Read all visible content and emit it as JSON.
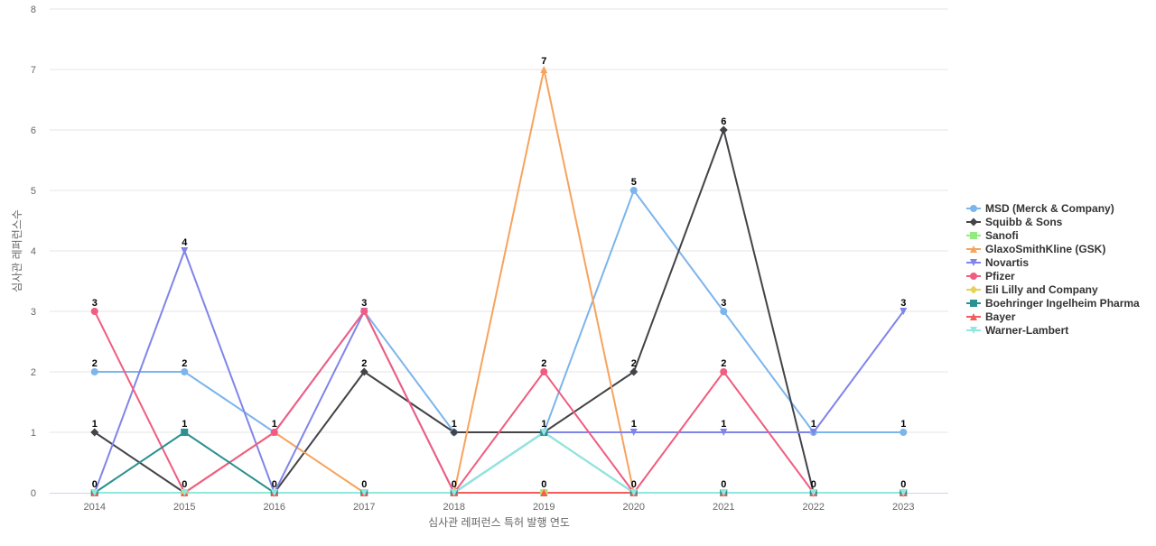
{
  "chart_data": {
    "type": "line",
    "title": "",
    "xlabel": "심사관 레퍼런스 특허 발행 연도",
    "ylabel": "심사관 레퍼런스수",
    "x": [
      "2014",
      "2015",
      "2016",
      "2017",
      "2018",
      "2019",
      "2020",
      "2021",
      "2022",
      "2023"
    ],
    "ylim": [
      0,
      8
    ],
    "yticks": [
      0,
      1,
      2,
      3,
      4,
      5,
      6,
      7,
      8
    ],
    "grid": true,
    "legend_position": "right",
    "series": [
      {
        "name": "MSD (Merck & Company)",
        "color": "#7cb5ec",
        "marker": "circle",
        "values": [
          2,
          2,
          1,
          3,
          1,
          1,
          5,
          3,
          1,
          1
        ]
      },
      {
        "name": "Squibb & Sons",
        "color": "#434348",
        "marker": "diamond",
        "values": [
          1,
          0,
          0,
          2,
          1,
          1,
          2,
          6,
          0,
          0
        ]
      },
      {
        "name": "Sanofi",
        "color": "#90ed7d",
        "marker": "square",
        "values": [
          0,
          0,
          0,
          0,
          0,
          0,
          0,
          0,
          0,
          0
        ]
      },
      {
        "name": "GlaxoSmithKline (GSK)",
        "color": "#f7a35c",
        "marker": "triangle",
        "values": [
          0,
          0,
          1,
          0,
          0,
          7,
          0,
          0,
          0,
          0
        ]
      },
      {
        "name": "Novartis",
        "color": "#8085e9",
        "marker": "triangle-down",
        "values": [
          0,
          4,
          0,
          3,
          0,
          1,
          1,
          1,
          1,
          3
        ]
      },
      {
        "name": "Pfizer",
        "color": "#f15c80",
        "marker": "circle",
        "values": [
          3,
          0,
          1,
          3,
          0,
          2,
          0,
          2,
          0,
          0
        ]
      },
      {
        "name": "Eli Lilly and Company",
        "color": "#e4d354",
        "marker": "diamond",
        "values": [
          0,
          0,
          0,
          0,
          0,
          0,
          0,
          0,
          0,
          0
        ]
      },
      {
        "name": "Boehringer Ingelheim Pharma",
        "color": "#2b908f",
        "marker": "square",
        "values": [
          0,
          1,
          0,
          0,
          0,
          1,
          0,
          0,
          0,
          0
        ]
      },
      {
        "name": "Bayer",
        "color": "#f45b5b",
        "marker": "triangle",
        "values": [
          0,
          0,
          0,
          0,
          0,
          0,
          0,
          0,
          0,
          0
        ]
      },
      {
        "name": "Warner-Lambert",
        "color": "#91e8e1",
        "marker": "triangle-down",
        "values": [
          0,
          0,
          0,
          0,
          0,
          1,
          0,
          0,
          0,
          0
        ]
      }
    ],
    "data_labels": [
      {
        "x": "2014",
        "values": [
          3,
          2,
          1,
          0
        ]
      },
      {
        "x": "2015",
        "values": [
          4,
          2,
          1,
          0
        ]
      },
      {
        "x": "2016",
        "values": [
          1,
          0
        ]
      },
      {
        "x": "2017",
        "values": [
          3,
          2,
          0
        ]
      },
      {
        "x": "2018",
        "values": [
          1,
          0
        ]
      },
      {
        "x": "2019",
        "values": [
          7,
          2,
          1,
          0
        ]
      },
      {
        "x": "2020",
        "values": [
          5,
          2,
          1,
          0
        ]
      },
      {
        "x": "2021",
        "values": [
          6,
          3,
          2,
          1,
          0
        ]
      },
      {
        "x": "2022",
        "values": [
          1,
          0
        ]
      },
      {
        "x": "2023",
        "values": [
          3,
          1,
          0
        ]
      }
    ]
  }
}
